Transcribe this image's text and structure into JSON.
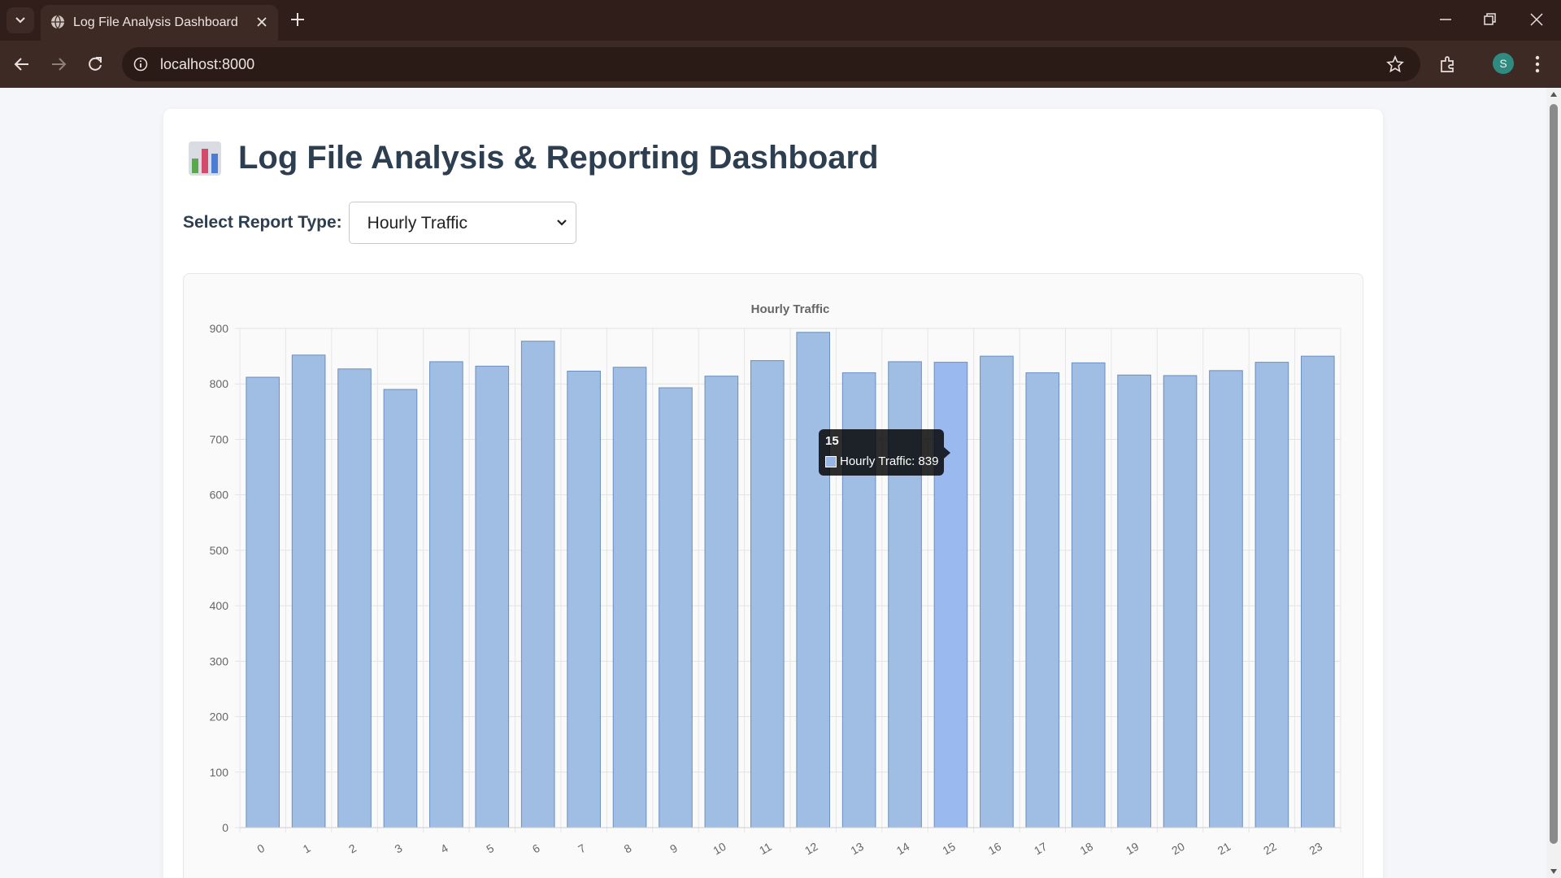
{
  "browser": {
    "tab_title": "Log File Analysis Dashboard",
    "url": "localhost:8000",
    "profile_initial": "S"
  },
  "page": {
    "title": "Log File Analysis & Reporting Dashboard",
    "logo_icon": "bar-chart-emoji",
    "select_label": "Select Report Type:",
    "select_value": "Hourly Traffic"
  },
  "tooltip": {
    "title": "15",
    "label": "Hourly Traffic: 839"
  },
  "colors": {
    "bar_fill": "#a0bde3",
    "bar_border": "#6b8fbf",
    "bar_hover_fill": "#99b9ef"
  },
  "chart_data": {
    "type": "bar",
    "title": "Hourly Traffic",
    "xlabel": "",
    "ylabel": "",
    "ylim": [
      0,
      900
    ],
    "yticks": [
      0,
      100,
      200,
      300,
      400,
      500,
      600,
      700,
      800,
      900
    ],
    "categories": [
      "0",
      "1",
      "2",
      "3",
      "4",
      "5",
      "6",
      "7",
      "8",
      "9",
      "10",
      "11",
      "12",
      "13",
      "14",
      "15",
      "16",
      "17",
      "18",
      "19",
      "20",
      "21",
      "22",
      "23"
    ],
    "series": [
      {
        "name": "Hourly Traffic",
        "values": [
          812,
          852,
          827,
          790,
          840,
          832,
          877,
          823,
          830,
          793,
          814,
          842,
          893,
          820,
          840,
          839,
          850,
          820,
          838,
          816,
          815,
          824,
          839,
          850
        ]
      }
    ],
    "highlighted_category": "15",
    "grid": true,
    "legend": false
  }
}
